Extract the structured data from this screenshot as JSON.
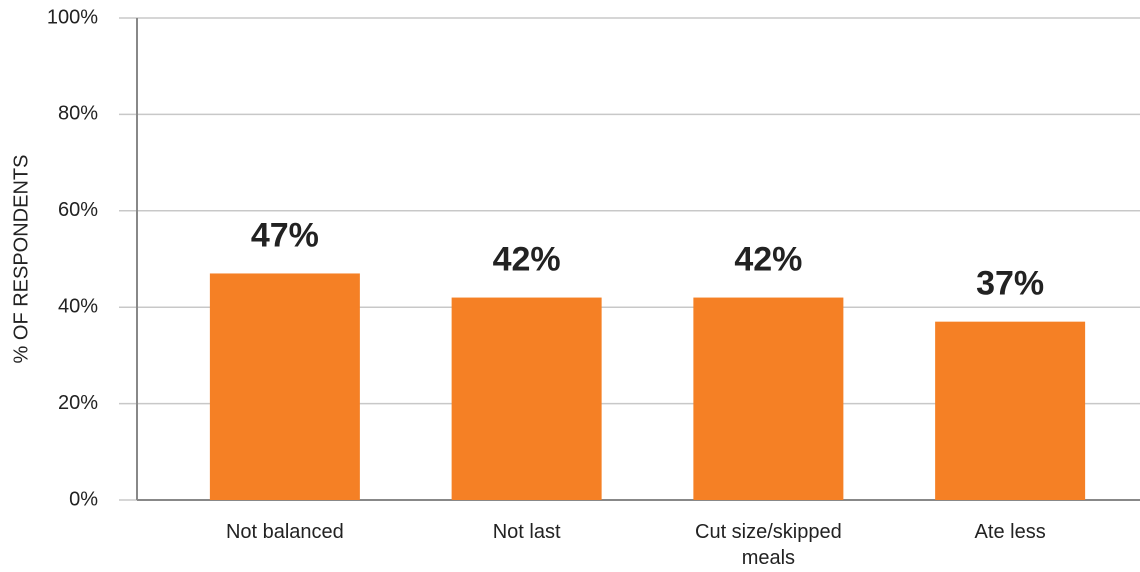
{
  "chart_data": {
    "type": "bar",
    "y_label": "% OF RESPONDENTS",
    "categories": [
      "Not balanced",
      "Not last",
      "Cut size/skipped meals",
      "Ate less"
    ],
    "values": [
      47,
      42,
      42,
      37
    ],
    "value_labels": [
      "47%",
      "42%",
      "42%",
      "37%"
    ],
    "color": "#f58025",
    "ylim": [
      0,
      100
    ],
    "yticks": [
      {
        "value": 0,
        "label": "0%"
      },
      {
        "value": 20,
        "label": "20%"
      },
      {
        "value": 40,
        "label": "40%"
      },
      {
        "value": 60,
        "label": "60%"
      },
      {
        "value": 80,
        "label": "80%"
      },
      {
        "value": 100,
        "label": "100%"
      }
    ],
    "grid": true
  }
}
